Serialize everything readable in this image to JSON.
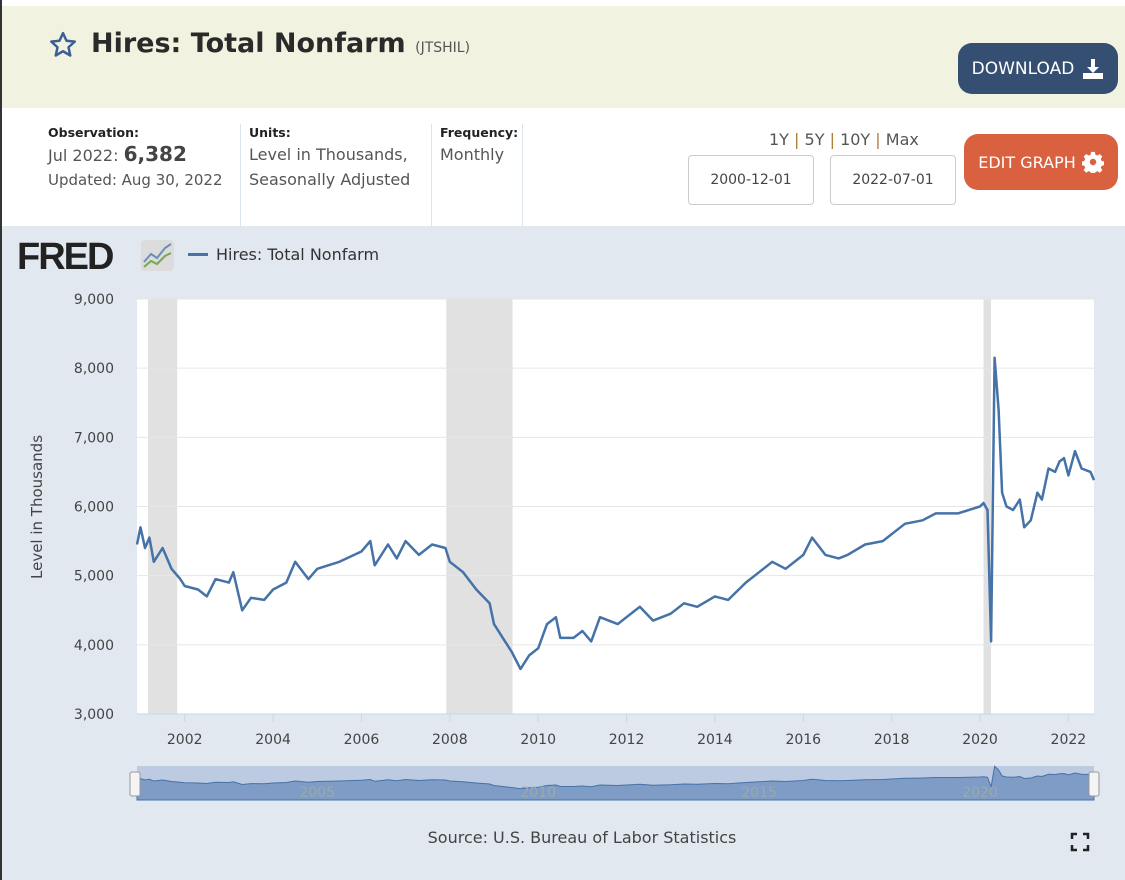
{
  "header": {
    "title": "Hires: Total Nonfarm",
    "series_id": "(JTSHIL)",
    "download_label": "DOWNLOAD",
    "edit_label": "EDIT GRAPH",
    "star_icon": "star-icon"
  },
  "meta": {
    "observation_label": "Observation:",
    "observation_date": "Jul 2022:",
    "observation_value": "6,382",
    "updated": "Updated: Aug 30, 2022",
    "units_label": "Units:",
    "units_line1": "Level in Thousands,",
    "units_line2": "Seasonally Adjusted",
    "frequency_label": "Frequency:",
    "frequency": "Monthly"
  },
  "range": {
    "r1": "1Y",
    "r5": "5Y",
    "r10": "10Y",
    "rmax": "Max",
    "sep": "|",
    "start": "2000-12-01",
    "end": "2022-07-01"
  },
  "logo": "FRED",
  "source": "Source: U.S. Bureau of Labor Statistics",
  "colors": {
    "line": "#4572a7",
    "recession": "#e1e1e1"
  },
  "chart_data": {
    "type": "line",
    "legend": "Hires: Total Nonfarm",
    "ylabel": "Level in Thousands",
    "ylim": [
      3000,
      9000
    ],
    "xlim": [
      2000.92,
      2022.58
    ],
    "yticks": [
      "3,000",
      "4,000",
      "5,000",
      "6,000",
      "7,000",
      "8,000",
      "9,000"
    ],
    "ytick_values": [
      3000,
      4000,
      5000,
      6000,
      7000,
      8000,
      9000
    ],
    "xticks": [
      "2002",
      "2004",
      "2006",
      "2008",
      "2010",
      "2012",
      "2014",
      "2016",
      "2018",
      "2020",
      "2022"
    ],
    "xtick_values": [
      2002,
      2004,
      2006,
      2008,
      2010,
      2012,
      2014,
      2016,
      2018,
      2020,
      2022
    ],
    "navigator_labels": [
      "2005",
      "2010",
      "2015",
      "2020"
    ],
    "navigator_values": [
      2005,
      2010,
      2015,
      2020
    ],
    "recessions": [
      [
        2001.17,
        2001.83
      ],
      [
        2007.92,
        2009.42
      ],
      [
        2020.08,
        2020.25
      ]
    ],
    "x": [
      2000.92,
      2001.0,
      2001.1,
      2001.2,
      2001.3,
      2001.5,
      2001.7,
      2001.9,
      2002.0,
      2002.3,
      2002.5,
      2002.7,
      2003.0,
      2003.1,
      2003.3,
      2003.5,
      2003.8,
      2004.0,
      2004.3,
      2004.5,
      2004.8,
      2005.0,
      2005.5,
      2006.0,
      2006.2,
      2006.3,
      2006.6,
      2006.8,
      2007.0,
      2007.3,
      2007.6,
      2007.9,
      2008.0,
      2008.3,
      2008.6,
      2008.9,
      2009.0,
      2009.2,
      2009.4,
      2009.6,
      2009.8,
      2010.0,
      2010.2,
      2010.4,
      2010.5,
      2010.8,
      2011.0,
      2011.2,
      2011.4,
      2011.8,
      2012.0,
      2012.3,
      2012.6,
      2013.0,
      2013.3,
      2013.6,
      2014.0,
      2014.3,
      2014.7,
      2015.0,
      2015.3,
      2015.6,
      2016.0,
      2016.2,
      2016.5,
      2016.8,
      2017.0,
      2017.4,
      2017.8,
      2018.0,
      2018.3,
      2018.7,
      2019.0,
      2019.5,
      2020.0,
      2020.08,
      2020.17,
      2020.25,
      2020.33,
      2020.42,
      2020.5,
      2020.6,
      2020.75,
      2020.9,
      2021.0,
      2021.15,
      2021.3,
      2021.4,
      2021.55,
      2021.7,
      2021.8,
      2021.9,
      2022.0,
      2022.15,
      2022.3,
      2022.5,
      2022.58
    ],
    "y": [
      5450,
      5700,
      5400,
      5550,
      5200,
      5400,
      5100,
      4950,
      4850,
      4800,
      4700,
      4950,
      4900,
      5050,
      4500,
      4680,
      4650,
      4800,
      4900,
      5200,
      4950,
      5100,
      5200,
      5350,
      5500,
      5150,
      5450,
      5250,
      5500,
      5300,
      5450,
      5400,
      5200,
      5050,
      4800,
      4600,
      4300,
      4100,
      3900,
      3650,
      3850,
      3950,
      4300,
      4400,
      4100,
      4100,
      4200,
      4050,
      4400,
      4300,
      4400,
      4550,
      4350,
      4450,
      4600,
      4550,
      4700,
      4650,
      4900,
      5050,
      5200,
      5100,
      5300,
      5550,
      5300,
      5250,
      5300,
      5450,
      5500,
      5600,
      5750,
      5800,
      5900,
      5900,
      6000,
      6050,
      5950,
      4050,
      8150,
      7400,
      6200,
      6000,
      5950,
      6100,
      5700,
      5800,
      6200,
      6100,
      6550,
      6500,
      6650,
      6700,
      6450,
      6800,
      6550,
      6500,
      6382
    ]
  }
}
